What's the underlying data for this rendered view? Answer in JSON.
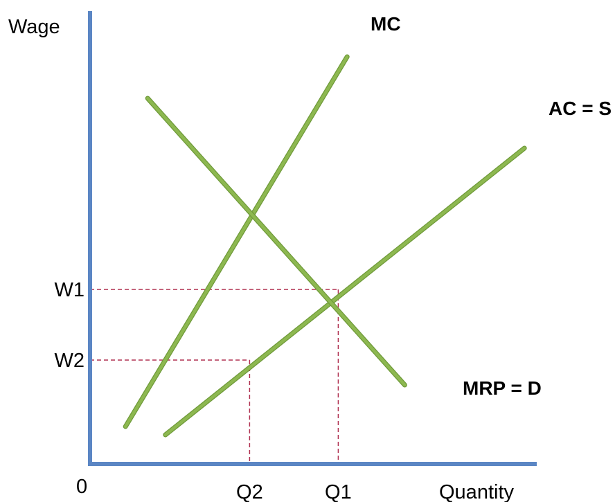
{
  "chart_data": {
    "type": "line",
    "title": "",
    "ylabel": "Wage",
    "xlabel": "Quantity",
    "origin_label": "0",
    "grid": false,
    "legend": "none",
    "xlim": [
      0,
      10
    ],
    "ylim": [
      0,
      10
    ],
    "series": [
      {
        "name": "MC",
        "points": [
          [
            0.8,
            0.9
          ],
          [
            5.8,
            9.8
          ]
        ]
      },
      {
        "name": "AC = S",
        "points": [
          [
            1.7,
            0.7
          ],
          [
            9.8,
            7.6
          ]
        ]
      },
      {
        "name": "MRP = D",
        "points": [
          [
            1.3,
            8.8
          ],
          [
            7.1,
            1.9
          ]
        ]
      }
    ],
    "reference_lines": [
      {
        "wage_label": "W1",
        "quantity_label": "Q1",
        "quantity": 5.6,
        "wage": 4.2
      },
      {
        "wage_label": "W2",
        "quantity_label": "Q2",
        "quantity": 3.6,
        "wage": 2.5
      }
    ],
    "colors": {
      "curve": "#8db850",
      "curve_edge": "#6f9a3a",
      "axis": "#5b86c4",
      "reference": "#b03050"
    }
  }
}
